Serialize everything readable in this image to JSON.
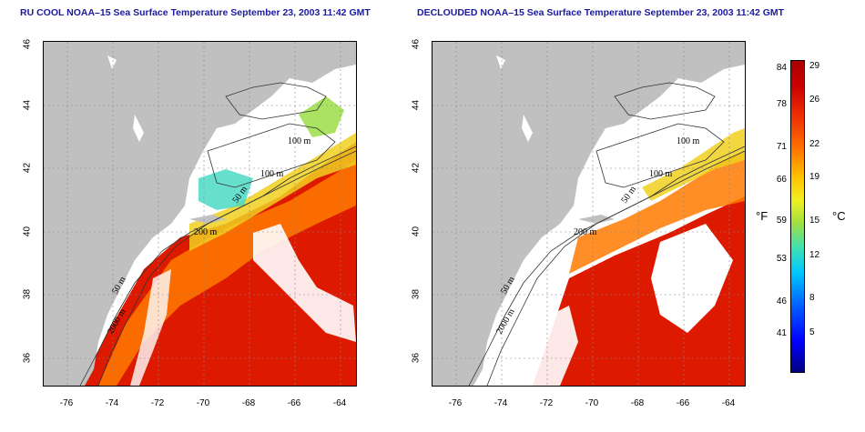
{
  "titles": {
    "left": "RU COOL NOAA–15 Sea Surface Temperature September 23, 2003 11:42 GMT",
    "right": "DECLOUDED NOAA–15 Sea Surface Temperature September 23, 2003 11:42 GMT"
  },
  "axes": {
    "lat_ticks": [
      "46",
      "44",
      "42",
      "40",
      "38",
      "36"
    ],
    "lon_ticks": [
      "-76",
      "-74",
      "-72",
      "-70",
      "-68",
      "-66",
      "-64"
    ]
  },
  "contour_labels": {
    "left": [
      "100 m",
      "100 m",
      "50 m",
      "200 m",
      "50 m",
      "2000 m"
    ],
    "right": [
      "100 m",
      "100 m",
      "50 m",
      "200 m",
      "50 m",
      "2000 m"
    ]
  },
  "colorbar": {
    "fahrenheit_ticks": [
      "84",
      "78",
      "71",
      "66",
      "59",
      "53",
      "46",
      "41"
    ],
    "celsius_ticks": [
      "29",
      "26",
      "22",
      "19",
      "15",
      "12",
      "8",
      "5"
    ],
    "unit_f": "°F",
    "unit_c": "°C"
  },
  "colors": {
    "land": "#c0c0c0",
    "warm": "#dd1a00",
    "mid": "#ff8800",
    "cool": "#f0e020",
    "cold": "#30d0d0",
    "title": "#1a1aa0"
  }
}
